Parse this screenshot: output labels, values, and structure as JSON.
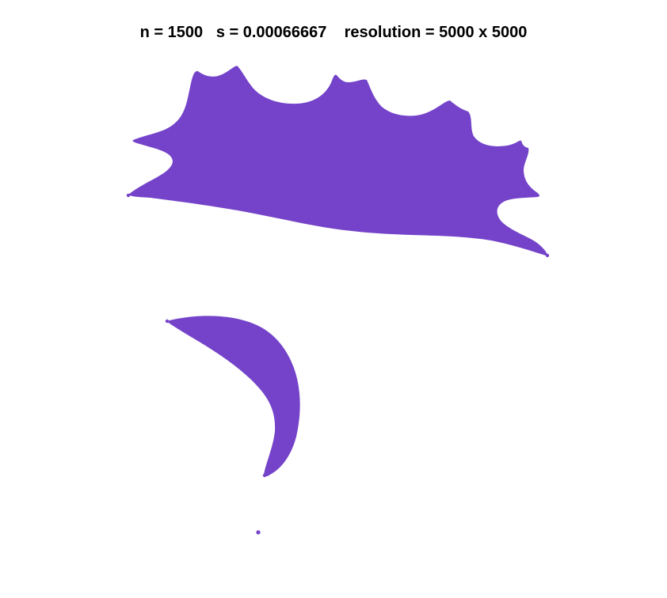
{
  "figure": {
    "title": "n = 1500   s = 0.00066667    resolution = 5000 x 5000",
    "fill_color": "#7443C9",
    "background_color": "#FFFFFF"
  }
}
